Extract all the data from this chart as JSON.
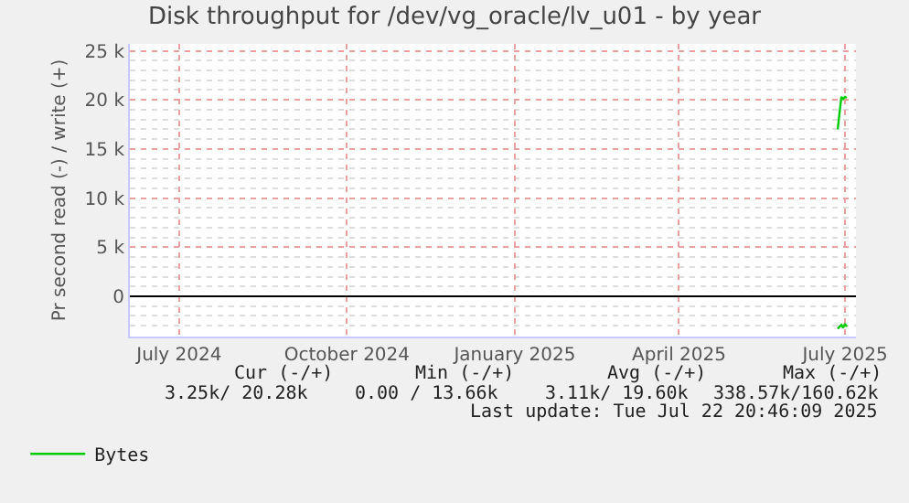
{
  "chart_data": {
    "type": "line",
    "title": "Disk throughput for /dev/vg_oracle/lv_u01 - by year",
    "ylabel": "Pr second read (-) / write (+)",
    "xlim": [
      "2024-06-19",
      "2025-07-22"
    ],
    "xticks": [
      {
        "value": "2024-07-16",
        "label": "July 2024"
      },
      {
        "value": "2024-10-16",
        "label": "October 2024"
      },
      {
        "value": "2025-01-16",
        "label": "January 2025"
      },
      {
        "value": "2025-04-16",
        "label": "April 2025"
      },
      {
        "value": "2025-07-16",
        "label": "July 2025"
      }
    ],
    "ylim": [
      -4100,
      25700
    ],
    "yticks": [
      {
        "value": 0,
        "label": "0"
      },
      {
        "value": 5000,
        "label": "5 k"
      },
      {
        "value": 10000,
        "label": "10 k"
      },
      {
        "value": 15000,
        "label": "15 k"
      },
      {
        "value": 20000,
        "label": "20 k"
      },
      {
        "value": 25000,
        "label": "25 k"
      }
    ],
    "series": [
      {
        "name": "Bytes",
        "color": "#00cc00",
        "x": [
          "2025-07-12",
          "2025-07-14",
          "2025-07-15",
          "2025-07-16",
          "2025-07-17"
        ],
        "values": [
          17000,
          20300,
          20100,
          20300,
          20200
        ]
      },
      {
        "color": "#00cc00",
        "x": [
          "2025-07-12",
          "2025-07-14",
          "2025-07-15",
          "2025-07-16",
          "2025-07-17"
        ],
        "values": [
          -3300,
          -2900,
          -3200,
          -2800,
          -3100
        ]
      }
    ],
    "ref_lines": [
      {
        "axis": "y",
        "value": 0,
        "color": "#000000"
      }
    ],
    "grid": true,
    "legend": "bottom left",
    "marker": "none",
    "line_style": "solid",
    "annotations": [
      "Cur (-/+)",
      "Min (-/+)",
      "Avg (-/+)",
      "Max (-/+)",
      "3.25k/ 20.28k",
      "0.00 / 13.66k",
      "3.11k/ 19.60k",
      "338.57k/160.62k",
      "Last update: Tue Jul 22 20:46:09 2025"
    ]
  }
}
